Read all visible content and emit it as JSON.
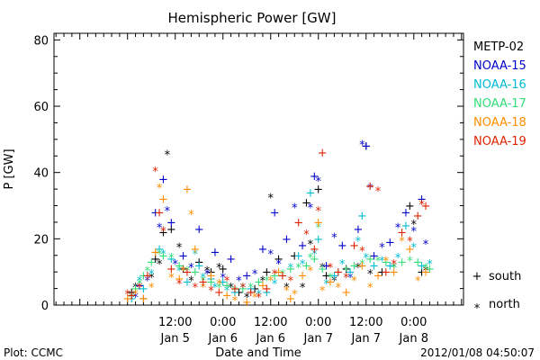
{
  "chart_data": {
    "type": "scatter",
    "title": "Hemispheric Power [GW]",
    "ylabel": "P [GW]",
    "xlabel": "Date and Time",
    "ylim": [
      0,
      82
    ],
    "xlim": [
      -18.5,
      84.5
    ],
    "y_ticks": [
      0,
      20,
      40,
      60,
      80
    ],
    "x_ticks": [
      {
        "x": 12,
        "time": "12:00",
        "date": "Jan 5"
      },
      {
        "x": 24,
        "time": "0:00",
        "date": "Jan 6"
      },
      {
        "x": 36,
        "time": "12:00",
        "date": "Jan 6"
      },
      {
        "x": 48,
        "time": "0:00",
        "date": "Jan 7"
      },
      {
        "x": 60,
        "time": "12:00",
        "date": "Jan 7"
      },
      {
        "x": 72,
        "time": "0:00",
        "date": "Jan 8"
      }
    ],
    "x_unit_note": "hours",
    "legend_position": "right",
    "series": [
      {
        "name": "METP-02",
        "color": "#000000",
        "points": [
          [
            1,
            4
          ],
          [
            2,
            6
          ],
          [
            4,
            2
          ],
          [
            6,
            9
          ],
          [
            7,
            14
          ],
          [
            8,
            13
          ],
          [
            9,
            22
          ],
          [
            10,
            46
          ],
          [
            11,
            23
          ],
          [
            13,
            18
          ],
          [
            14,
            11
          ],
          [
            16,
            8
          ],
          [
            18,
            13
          ],
          [
            20,
            11
          ],
          [
            21,
            10
          ],
          [
            23,
            12
          ],
          [
            24,
            11
          ],
          [
            26,
            6
          ],
          [
            28,
            4
          ],
          [
            30,
            3
          ],
          [
            32,
            5
          ],
          [
            34,
            8
          ],
          [
            35,
            10
          ],
          [
            36,
            33
          ],
          [
            38,
            14
          ],
          [
            40,
            6
          ],
          [
            42,
            15
          ],
          [
            44,
            6
          ],
          [
            45,
            31
          ],
          [
            46,
            19
          ],
          [
            48,
            35
          ],
          [
            49,
            12
          ],
          [
            50,
            9
          ],
          [
            52,
            8
          ],
          [
            55,
            11
          ],
          [
            58,
            12
          ],
          [
            60,
            48
          ],
          [
            61,
            10
          ],
          [
            64,
            10
          ],
          [
            67,
            12
          ],
          [
            71,
            30
          ],
          [
            72,
            25
          ],
          [
            74,
            10
          ],
          [
            75,
            11
          ]
        ]
      },
      {
        "name": "NOAA-15",
        "color": "#0000cc",
        "points": [
          [
            2,
            3
          ],
          [
            3,
            6
          ],
          [
            5,
            8
          ],
          [
            7,
            28
          ],
          [
            8,
            24
          ],
          [
            9,
            38
          ],
          [
            10,
            29
          ],
          [
            11,
            25
          ],
          [
            12,
            13
          ],
          [
            14,
            15
          ],
          [
            16,
            12
          ],
          [
            18,
            23
          ],
          [
            20,
            10
          ],
          [
            22,
            16
          ],
          [
            24,
            9
          ],
          [
            26,
            14
          ],
          [
            28,
            8
          ],
          [
            30,
            9
          ],
          [
            32,
            10
          ],
          [
            34,
            17
          ],
          [
            36,
            16
          ],
          [
            37,
            28
          ],
          [
            38,
            13
          ],
          [
            40,
            20
          ],
          [
            42,
            30
          ],
          [
            44,
            18
          ],
          [
            46,
            30
          ],
          [
            47,
            39
          ],
          [
            48,
            38
          ],
          [
            50,
            12
          ],
          [
            52,
            21
          ],
          [
            54,
            18
          ],
          [
            56,
            9
          ],
          [
            58,
            23
          ],
          [
            59,
            49
          ],
          [
            60,
            48
          ],
          [
            61,
            36
          ],
          [
            62,
            15
          ],
          [
            64,
            18
          ],
          [
            66,
            19
          ],
          [
            68,
            24
          ],
          [
            70,
            28
          ],
          [
            72,
            23
          ],
          [
            74,
            32
          ],
          [
            75,
            19
          ]
        ]
      },
      {
        "name": "NOAA-16",
        "color": "#00bcd4",
        "points": [
          [
            1,
            2
          ],
          [
            3,
            8
          ],
          [
            4,
            5
          ],
          [
            6,
            10
          ],
          [
            8,
            17
          ],
          [
            9,
            16
          ],
          [
            11,
            14
          ],
          [
            13,
            11
          ],
          [
            15,
            7
          ],
          [
            17,
            16
          ],
          [
            18,
            12
          ],
          [
            19,
            9
          ],
          [
            21,
            8
          ],
          [
            22,
            6
          ],
          [
            24,
            7
          ],
          [
            25,
            5
          ],
          [
            27,
            4
          ],
          [
            29,
            6
          ],
          [
            31,
            5
          ],
          [
            33,
            4
          ],
          [
            35,
            4
          ],
          [
            37,
            7
          ],
          [
            39,
            9
          ],
          [
            41,
            12
          ],
          [
            43,
            15
          ],
          [
            44,
            13
          ],
          [
            46,
            34
          ],
          [
            47,
            16
          ],
          [
            48,
            20
          ],
          [
            50,
            7
          ],
          [
            52,
            9
          ],
          [
            54,
            13
          ],
          [
            56,
            10
          ],
          [
            58,
            20
          ],
          [
            59,
            27
          ],
          [
            60,
            15
          ],
          [
            62,
            12
          ],
          [
            64,
            14
          ],
          [
            66,
            12
          ],
          [
            68,
            15
          ],
          [
            70,
            24
          ],
          [
            72,
            18
          ],
          [
            74,
            12
          ],
          [
            76,
            13
          ]
        ]
      },
      {
        "name": "NOAA-17",
        "color": "#33dd77",
        "points": [
          [
            1,
            3
          ],
          [
            2,
            5
          ],
          [
            3,
            7
          ],
          [
            4,
            9
          ],
          [
            5,
            11
          ],
          [
            6,
            13
          ],
          [
            8,
            16
          ],
          [
            9,
            15
          ],
          [
            11,
            15
          ],
          [
            13,
            12
          ],
          [
            15,
            11
          ],
          [
            17,
            10
          ],
          [
            19,
            8
          ],
          [
            21,
            7
          ],
          [
            23,
            6
          ],
          [
            25,
            6
          ],
          [
            27,
            5
          ],
          [
            29,
            5
          ],
          [
            31,
            6
          ],
          [
            33,
            7
          ],
          [
            35,
            8
          ],
          [
            37,
            9
          ],
          [
            39,
            10
          ],
          [
            41,
            11
          ],
          [
            43,
            12
          ],
          [
            45,
            12
          ],
          [
            46,
            15
          ],
          [
            47,
            14
          ],
          [
            48,
            24
          ],
          [
            49,
            11
          ],
          [
            51,
            9
          ],
          [
            53,
            10
          ],
          [
            55,
            11
          ],
          [
            57,
            12
          ],
          [
            59,
            13
          ],
          [
            61,
            14
          ],
          [
            63,
            14
          ],
          [
            65,
            13
          ],
          [
            67,
            12
          ],
          [
            69,
            13
          ],
          [
            71,
            14
          ],
          [
            73,
            13
          ],
          [
            75,
            12
          ],
          [
            76,
            11
          ]
        ]
      },
      {
        "name": "NOAA-18",
        "color": "#ff8c00",
        "points": [
          [
            0,
            2
          ],
          [
            2,
            4
          ],
          [
            4,
            2
          ],
          [
            6,
            6
          ],
          [
            7,
            16
          ],
          [
            8,
            36
          ],
          [
            9,
            32
          ],
          [
            11,
            9
          ],
          [
            13,
            8
          ],
          [
            14,
            11
          ],
          [
            15,
            35
          ],
          [
            16,
            28
          ],
          [
            17,
            17
          ],
          [
            19,
            6
          ],
          [
            21,
            9
          ],
          [
            23,
            7
          ],
          [
            25,
            3
          ],
          [
            27,
            2
          ],
          [
            30,
            1
          ],
          [
            32,
            3
          ],
          [
            34,
            6
          ],
          [
            36,
            8
          ],
          [
            38,
            10
          ],
          [
            40,
            5
          ],
          [
            41,
            2
          ],
          [
            42,
            4
          ],
          [
            44,
            9
          ],
          [
            46,
            11
          ],
          [
            48,
            25
          ],
          [
            49,
            5
          ],
          [
            51,
            7
          ],
          [
            53,
            6
          ],
          [
            55,
            4
          ],
          [
            57,
            8
          ],
          [
            59,
            12
          ],
          [
            61,
            6
          ],
          [
            63,
            9
          ],
          [
            65,
            14
          ],
          [
            67,
            10
          ],
          [
            69,
            20
          ],
          [
            71,
            17
          ],
          [
            73,
            8
          ],
          [
            75,
            10
          ]
        ]
      },
      {
        "name": "NOAA-19",
        "color": "#dd2200",
        "points": [
          [
            0,
            4
          ],
          [
            1,
            3
          ],
          [
            3,
            6
          ],
          [
            5,
            9
          ],
          [
            7,
            41
          ],
          [
            8,
            28
          ],
          [
            9,
            23
          ],
          [
            11,
            11
          ],
          [
            13,
            7
          ],
          [
            15,
            10
          ],
          [
            17,
            6
          ],
          [
            19,
            7
          ],
          [
            21,
            5
          ],
          [
            23,
            4
          ],
          [
            25,
            8
          ],
          [
            27,
            5
          ],
          [
            29,
            6
          ],
          [
            31,
            4
          ],
          [
            33,
            3
          ],
          [
            35,
            5
          ],
          [
            37,
            10
          ],
          [
            39,
            9
          ],
          [
            41,
            8
          ],
          [
            43,
            25
          ],
          [
            45,
            22
          ],
          [
            47,
            17
          ],
          [
            48,
            29
          ],
          [
            49,
            46
          ],
          [
            51,
            12
          ],
          [
            53,
            10
          ],
          [
            55,
            9
          ],
          [
            57,
            18
          ],
          [
            59,
            17
          ],
          [
            61,
            36
          ],
          [
            63,
            35
          ],
          [
            65,
            10
          ],
          [
            67,
            13
          ],
          [
            69,
            22
          ],
          [
            71,
            20
          ],
          [
            73,
            27
          ],
          [
            74,
            31
          ],
          [
            75,
            30
          ]
        ]
      }
    ],
    "marker_legend": [
      {
        "symbol": "+",
        "label": "south"
      },
      {
        "symbol": "*",
        "label": "north"
      }
    ]
  },
  "footer": {
    "left": "Plot: CCMC",
    "right": "2012/01/08 04:50:07"
  }
}
